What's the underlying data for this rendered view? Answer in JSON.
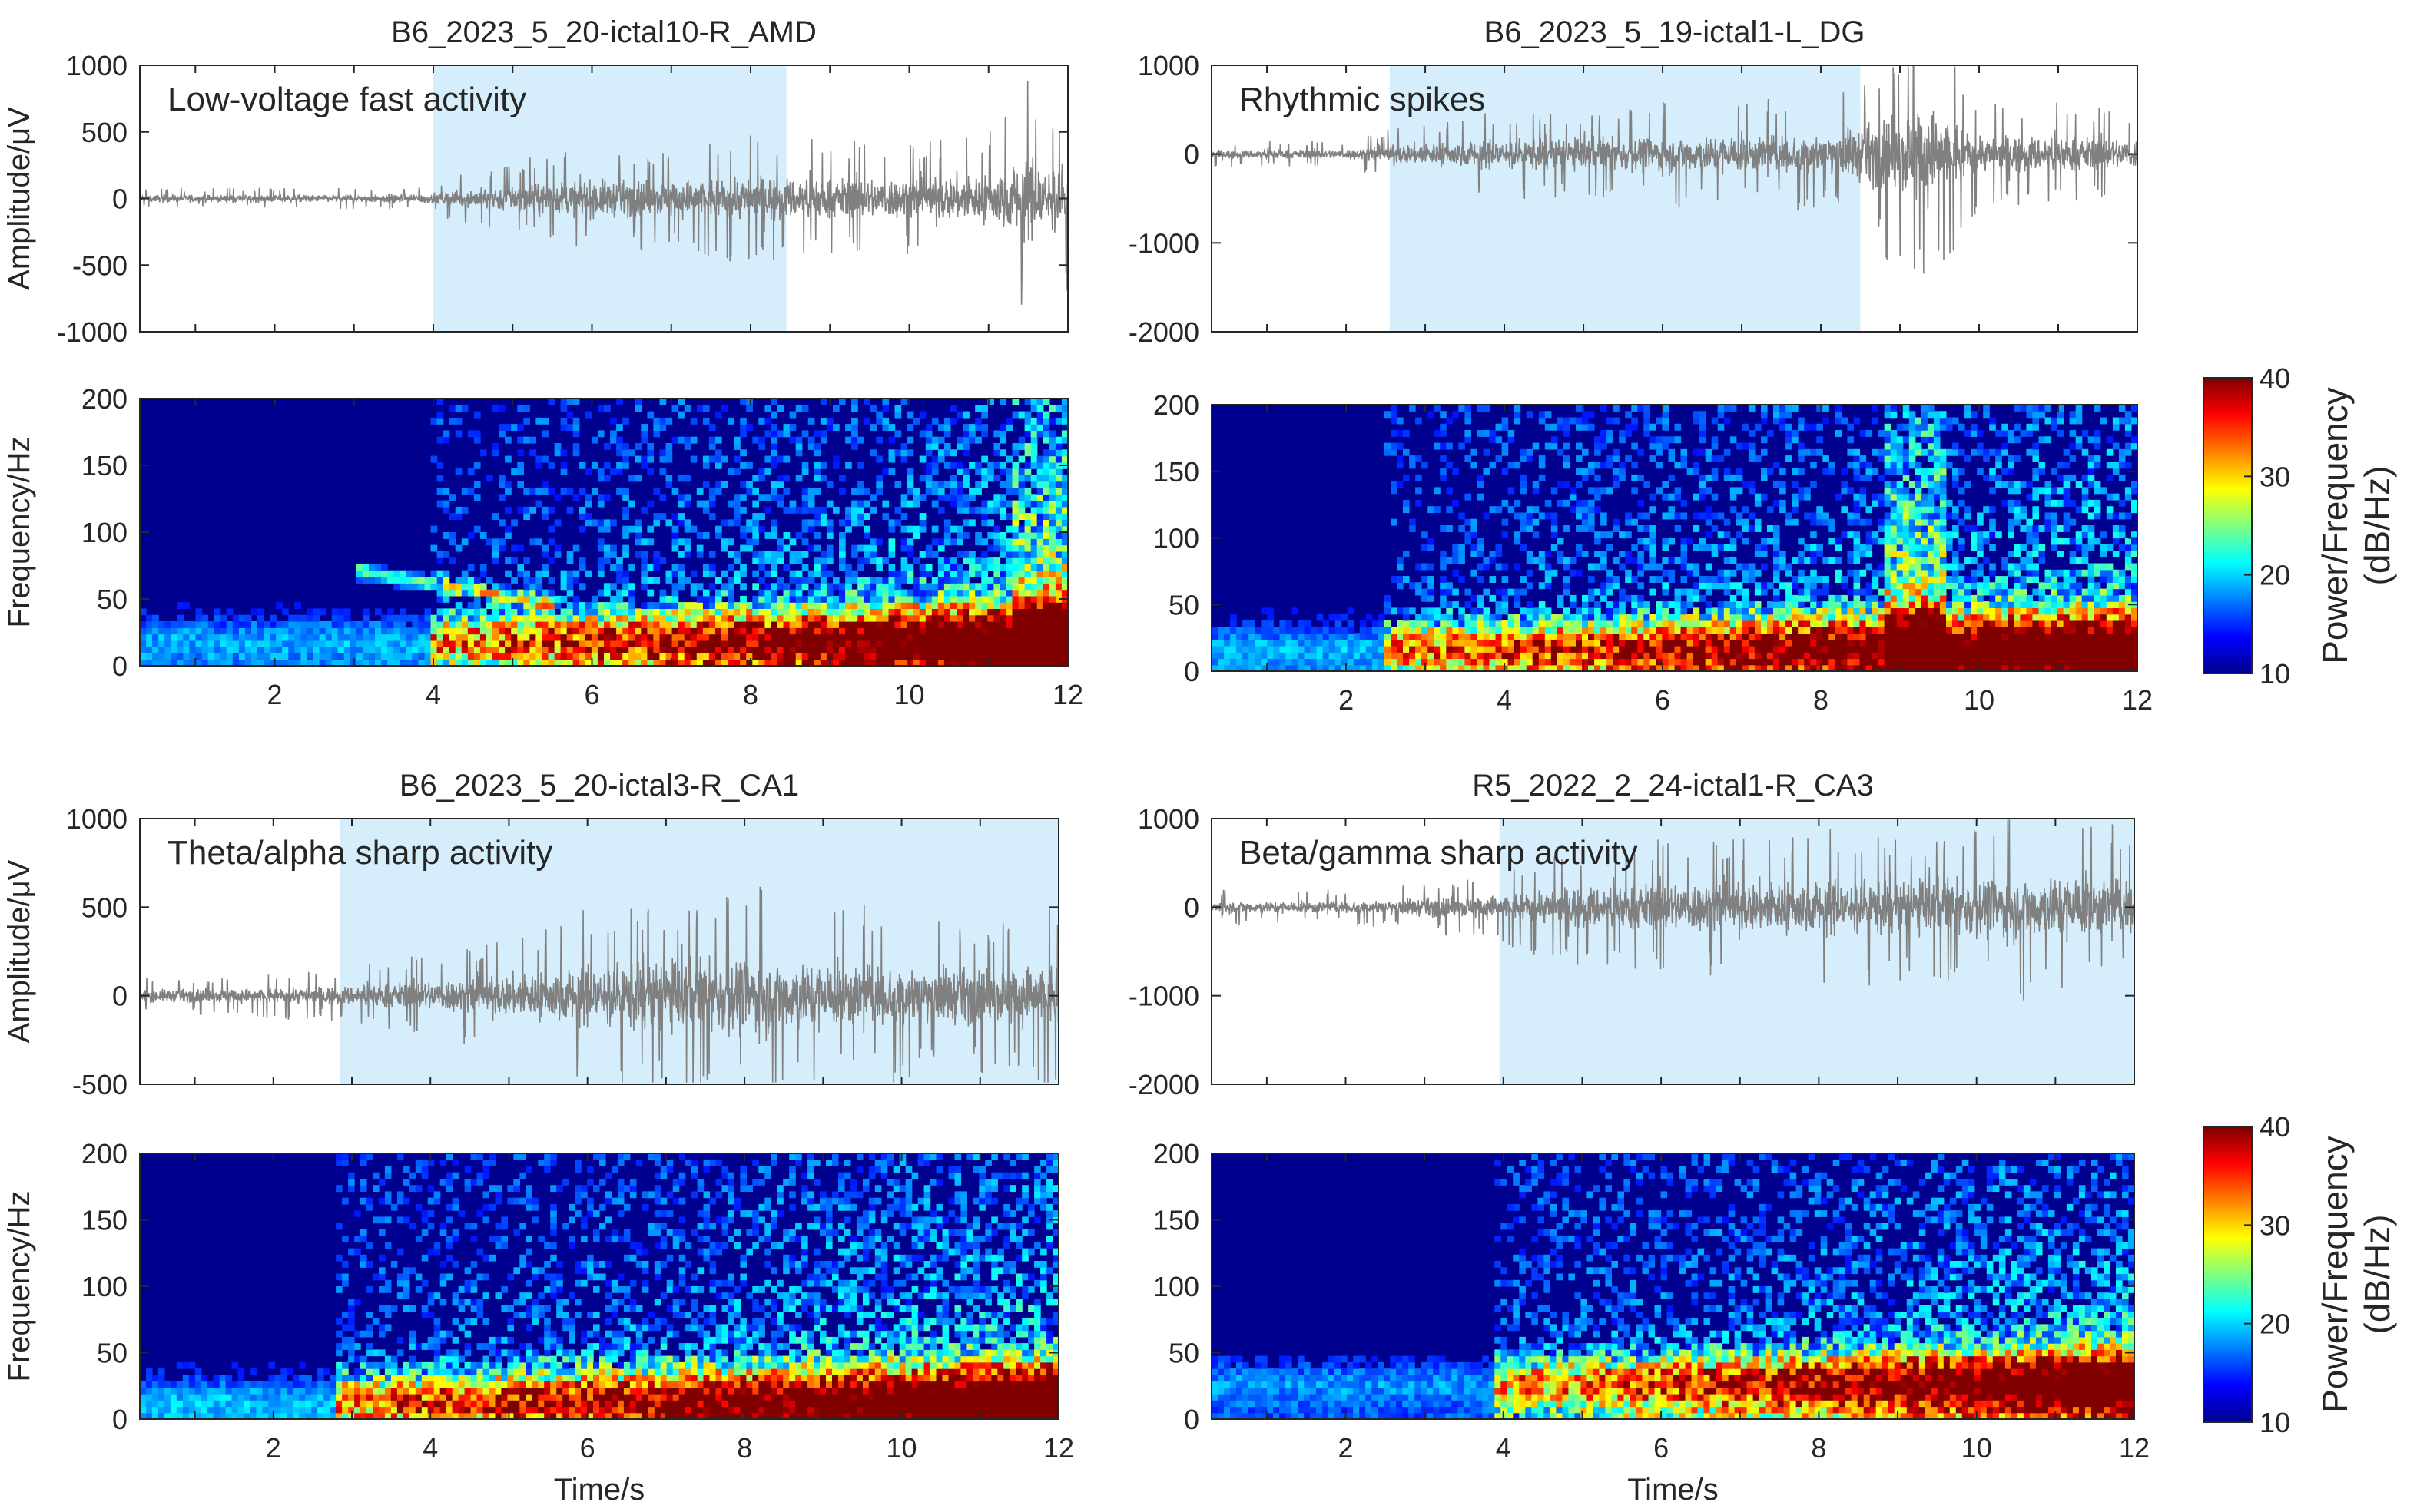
{
  "chart_data": [
    {
      "type": "line",
      "title": "B6_2023_5_20-ictal10-R_AMD",
      "annotation": "Low-voltage fast activity",
      "ylabel": "Amplitude/μV",
      "xlabel": "",
      "xlim": [
        0.3,
        12
      ],
      "ylim": [
        -1000,
        1000
      ],
      "yticks": [
        -1000,
        -500,
        0,
        500,
        1000
      ],
      "highlight_x": [
        4.0,
        8.45
      ],
      "signal_envelope": {
        "x": [
          0.3,
          2,
          3,
          4,
          5,
          6,
          7,
          8,
          9,
          10,
          11,
          11.5,
          12
        ],
        "amplitude": [
          80,
          80,
          80,
          120,
          300,
          400,
          400,
          500,
          450,
          450,
          550,
          900,
          700
        ]
      },
      "color": "#808080",
      "highlight_color": "#d6eefb"
    },
    {
      "type": "heatmap",
      "title": "",
      "ylabel": "Frequency/Hz",
      "xlabel": "",
      "xlim": [
        0.3,
        12
      ],
      "ylim": [
        0,
        200
      ],
      "xticks": [
        2,
        4,
        6,
        8,
        10,
        12
      ],
      "yticks": [
        0,
        50,
        100,
        150,
        200
      ],
      "zlim": [
        10,
        40
      ],
      "colormap": "jet"
    },
    {
      "type": "line",
      "title": "B6_2023_5_19-ictal1-L_DG",
      "annotation": "Rhythmic spikes",
      "ylabel": "",
      "xlabel": "",
      "xlim": [
        0.3,
        12
      ],
      "ylim": [
        -2000,
        1000
      ],
      "yticks": [
        -2000,
        -1000,
        0,
        1000
      ],
      "highlight_x": [
        2.55,
        8.5
      ],
      "signal_envelope": {
        "x": [
          0.3,
          2,
          2.5,
          4,
          6,
          8,
          8.5,
          9,
          9.3,
          10,
          11,
          12
        ],
        "amplitude": [
          150,
          150,
          300,
          500,
          600,
          650,
          900,
          1400,
          1700,
          600,
          600,
          500
        ]
      },
      "color": "#808080",
      "highlight_color": "#d6eefb"
    },
    {
      "type": "heatmap",
      "title": "",
      "ylabel": "",
      "xlabel": "",
      "xlim": [
        0.3,
        12
      ],
      "ylim": [
        0,
        200
      ],
      "xticks": [
        2,
        4,
        6,
        8,
        10,
        12
      ],
      "yticks": [
        0,
        50,
        100,
        150,
        200
      ],
      "zlim": [
        10,
        40
      ],
      "colormap": "jet"
    },
    {
      "type": "line",
      "title": "B6_2023_5_20-ictal3-R_CA1",
      "annotation": "Theta/alpha sharp activity",
      "ylabel": "Amplitude/μV",
      "xlabel": "",
      "xlim": [
        0.3,
        12
      ],
      "ylim": [
        -500,
        1000
      ],
      "yticks": [
        -500,
        0,
        500,
        1000
      ],
      "highlight_x": [
        2.85,
        12
      ],
      "signal_envelope": {
        "x": [
          0.3,
          1.5,
          2.8,
          4,
          5,
          6,
          7,
          8,
          9,
          10,
          11,
          12
        ],
        "amplitude": [
          100,
          120,
          150,
          250,
          350,
          500,
          600,
          650,
          550,
          500,
          450,
          550
        ]
      },
      "color": "#808080",
      "highlight_color": "#d6eefb"
    },
    {
      "type": "heatmap",
      "title": "",
      "ylabel": "Frequency/Hz",
      "xlabel": "Time/s",
      "xlim": [
        0.3,
        12
      ],
      "ylim": [
        0,
        200
      ],
      "xticks": [
        2,
        4,
        6,
        8,
        10,
        12
      ],
      "yticks": [
        0,
        50,
        100,
        150,
        200
      ],
      "zlim": [
        10,
        40
      ],
      "colormap": "jet"
    },
    {
      "type": "line",
      "title": "R5_2022_2_24-ictal1-R_CA3",
      "annotation": "Beta/gamma sharp activity",
      "ylabel": "",
      "xlabel": "",
      "xlim": [
        0.3,
        12
      ],
      "ylim": [
        -2000,
        1000
      ],
      "yticks": [
        -2000,
        -1000,
        0,
        1000
      ],
      "highlight_x": [
        3.95,
        12
      ],
      "signal_envelope": {
        "x": [
          0.3,
          2,
          3.9,
          5,
          6,
          7,
          8,
          9,
          10,
          11,
          12
        ],
        "amplitude": [
          200,
          200,
          400,
          700,
          800,
          850,
          900,
          900,
          1000,
          1100,
          900
        ]
      },
      "color": "#808080",
      "highlight_color": "#d6eefb"
    },
    {
      "type": "heatmap",
      "title": "",
      "ylabel": "",
      "xlabel": "Time/s",
      "xlim": [
        0.3,
        12
      ],
      "ylim": [
        0,
        200
      ],
      "xticks": [
        2,
        4,
        6,
        8,
        10,
        12
      ],
      "yticks": [
        0,
        50,
        100,
        150,
        200
      ],
      "zlim": [
        10,
        40
      ],
      "colormap": "jet"
    }
  ],
  "colorbars": [
    {
      "label_line1": "Power/Frequency",
      "label_line2": "(dB/Hz)",
      "ticks": [
        10,
        20,
        30,
        40
      ],
      "range": [
        10,
        40
      ],
      "colormap": "jet"
    },
    {
      "label_line1": "Power/Frequency",
      "label_line2": "(dB/Hz)",
      "ticks": [
        10,
        20,
        30,
        40
      ],
      "range": [
        10,
        40
      ],
      "colormap": "jet"
    }
  ]
}
